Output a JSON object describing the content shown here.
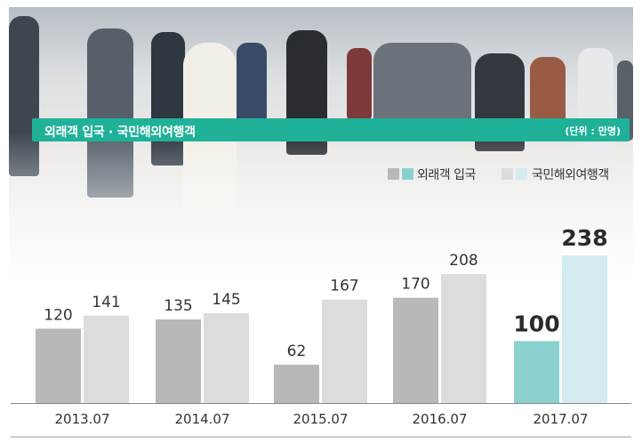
{
  "chart_data": {
    "type": "bar",
    "title": "외래객 입국 · 국민해외여행객",
    "unit": "(단위 : 만명)",
    "categories": [
      "2013.07",
      "2014.07",
      "2015.07",
      "2016.07",
      "2017.07"
    ],
    "series": [
      {
        "name": "외래객 입국",
        "values": [
          120,
          135,
          62,
          170,
          100
        ]
      },
      {
        "name": "국민해외여행객",
        "values": [
          141,
          145,
          167,
          208,
          238
        ]
      }
    ],
    "legend_position": "top-right",
    "grid": false,
    "colors": {
      "inbound": "#b7b8ba",
      "outbound": "#dcdcdd",
      "inbound_highlight": "#8ad0cf",
      "outbound_highlight": "#d3ecef",
      "title_bar": "#20b199"
    }
  }
}
